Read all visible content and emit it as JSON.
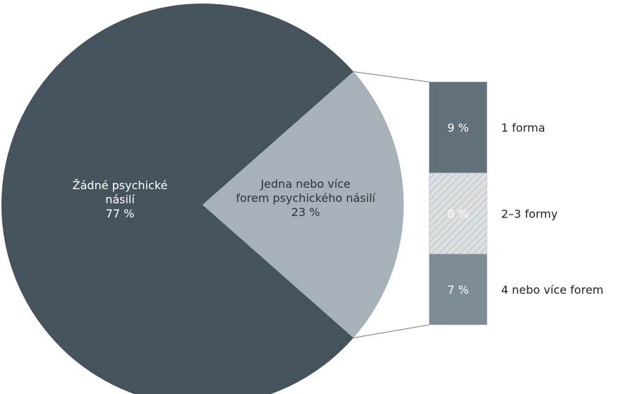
{
  "chart_data": {
    "type": "pie",
    "title": "",
    "slices": [
      {
        "label_lines": [
          "Žádné psychické",
          "násilí"
        ],
        "value": 77,
        "value_text": "77 %",
        "color": "#45535d",
        "text_color": "#ffffff"
      },
      {
        "label_lines": [
          "Jedna nebo více",
          "forem psychického násilí"
        ],
        "value": 23,
        "value_text": "23 %",
        "color": "#a6b1b8",
        "text_color": "#2b3238"
      }
    ],
    "breakdown": {
      "type": "stacked-bar",
      "of_slice": "Jedna nebo více forem psychického násilí",
      "segments": [
        {
          "label": "1 forma",
          "value": 9,
          "value_text": "9 %",
          "color": "#627079",
          "pattern": "solid"
        },
        {
          "label": "2–3 formy",
          "value": 8,
          "value_text": "8 %",
          "color": "#dcdfe1",
          "pattern": "hatched"
        },
        {
          "label": "4 nebo více forem",
          "value": 7,
          "value_text": "7 %",
          "color": "#7e8d95",
          "pattern": "solid"
        }
      ]
    }
  }
}
